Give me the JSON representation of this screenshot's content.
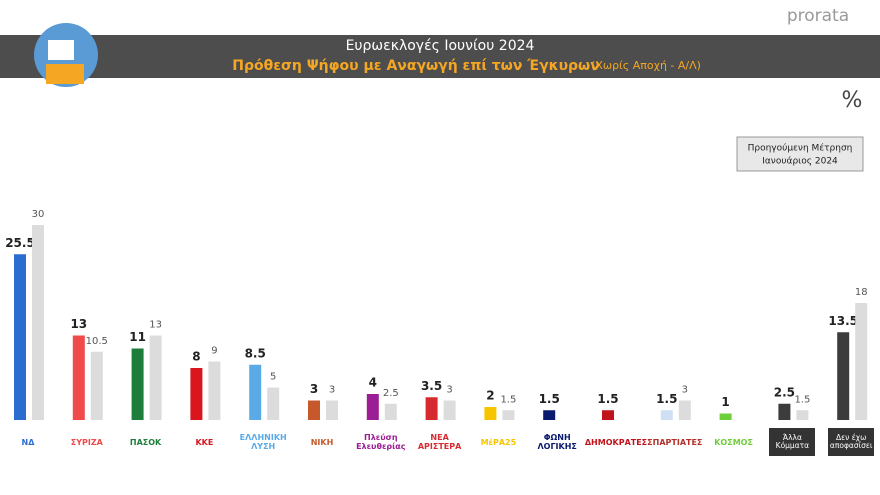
{
  "brand": "prorata",
  "chart_data": {
    "type": "bar",
    "title": "Ευρωεκλογές Ιουνίου 2024",
    "subtitle": "Πρόθεση Ψήφου με Αναγωγή επί των Έγκυρων",
    "subtitle_note": "(Χωρίς Αποχή - Α/Λ)",
    "unit": "%",
    "categories": [
      "ΝΔ",
      "ΣΥΡΙΖΑ",
      "ΠΑΣΟΚ",
      "ΚΚΕ",
      "ΕΛΛΗΝΙΚΗ ΛΥΣΗ",
      "ΝΙΚΗ",
      "Πλεύση Ελευθερίας",
      "ΝΕΑ ΑΡΙΣΤΕΡΑ",
      "ΜέΡΑ25",
      "ΦΩΝΗ ΛΟΓΙΚΗΣ",
      "ΔΗΜΟΚΡΑΤΕΣ",
      "ΣΠΑΡΤΙΑΤΕΣ",
      "ΚΟΣΜΟΣ",
      "Άλλα Κόμματα",
      "Δεν έχω αποφασίσει"
    ],
    "series": [
      {
        "colors": [
          "#2a6dd0",
          "#f04a4a",
          "#1f7d3c",
          "#d9151d",
          "#5aaae8",
          "#c5592b",
          "#9c1e94",
          "#d52b2f",
          "#f6c500",
          "#0a1a6e",
          "#c0141c",
          "#cfe0f5",
          "#6fcf3a",
          "#3c3c3c",
          "#3c3c3c"
        ],
        "values": [
          25.5,
          13,
          11,
          8,
          8.5,
          3,
          4,
          3.5,
          2,
          1.5,
          1.5,
          1.5,
          1,
          2.5,
          13.5
        ]
      },
      {
        "name": "Προηγούμενη Μέτρηση",
        "period": "Ιανουάριος 2024",
        "color": "#dcdcdc",
        "values": [
          30,
          10.5,
          13,
          9,
          5,
          3,
          2.5,
          3,
          1.5,
          null,
          null,
          3,
          null,
          1.5,
          18
        ]
      }
    ]
  }
}
